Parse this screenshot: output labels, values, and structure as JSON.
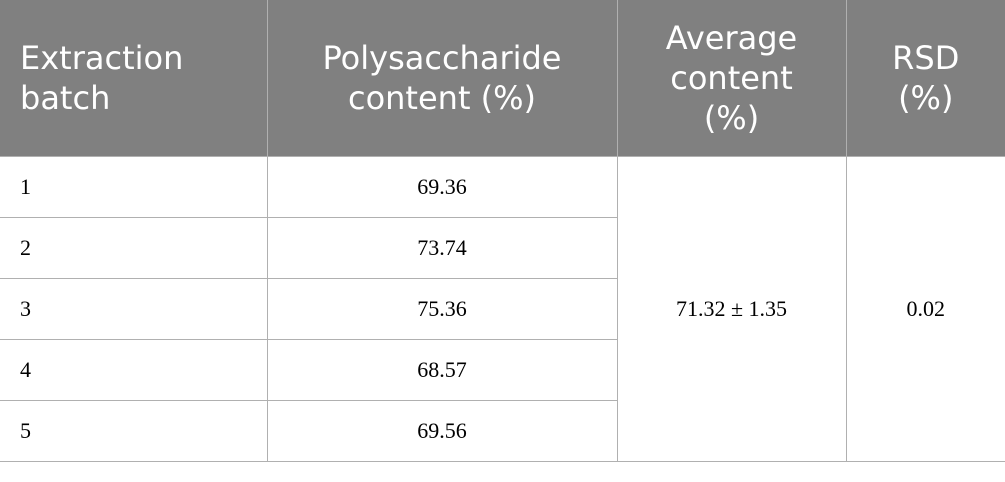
{
  "table": {
    "header": [
      "Extraction batch",
      "Polysaccharide content (%)",
      "Average content (%)",
      "RSD (%)"
    ],
    "rows": [
      [
        "1",
        "69.36"
      ],
      [
        "2",
        "73.74"
      ],
      [
        "3",
        "75.36"
      ],
      [
        "4",
        "68.57"
      ],
      [
        "5",
        "69.56"
      ]
    ],
    "average": "71.32 ± 1.35",
    "rsd": "0.02"
  }
}
